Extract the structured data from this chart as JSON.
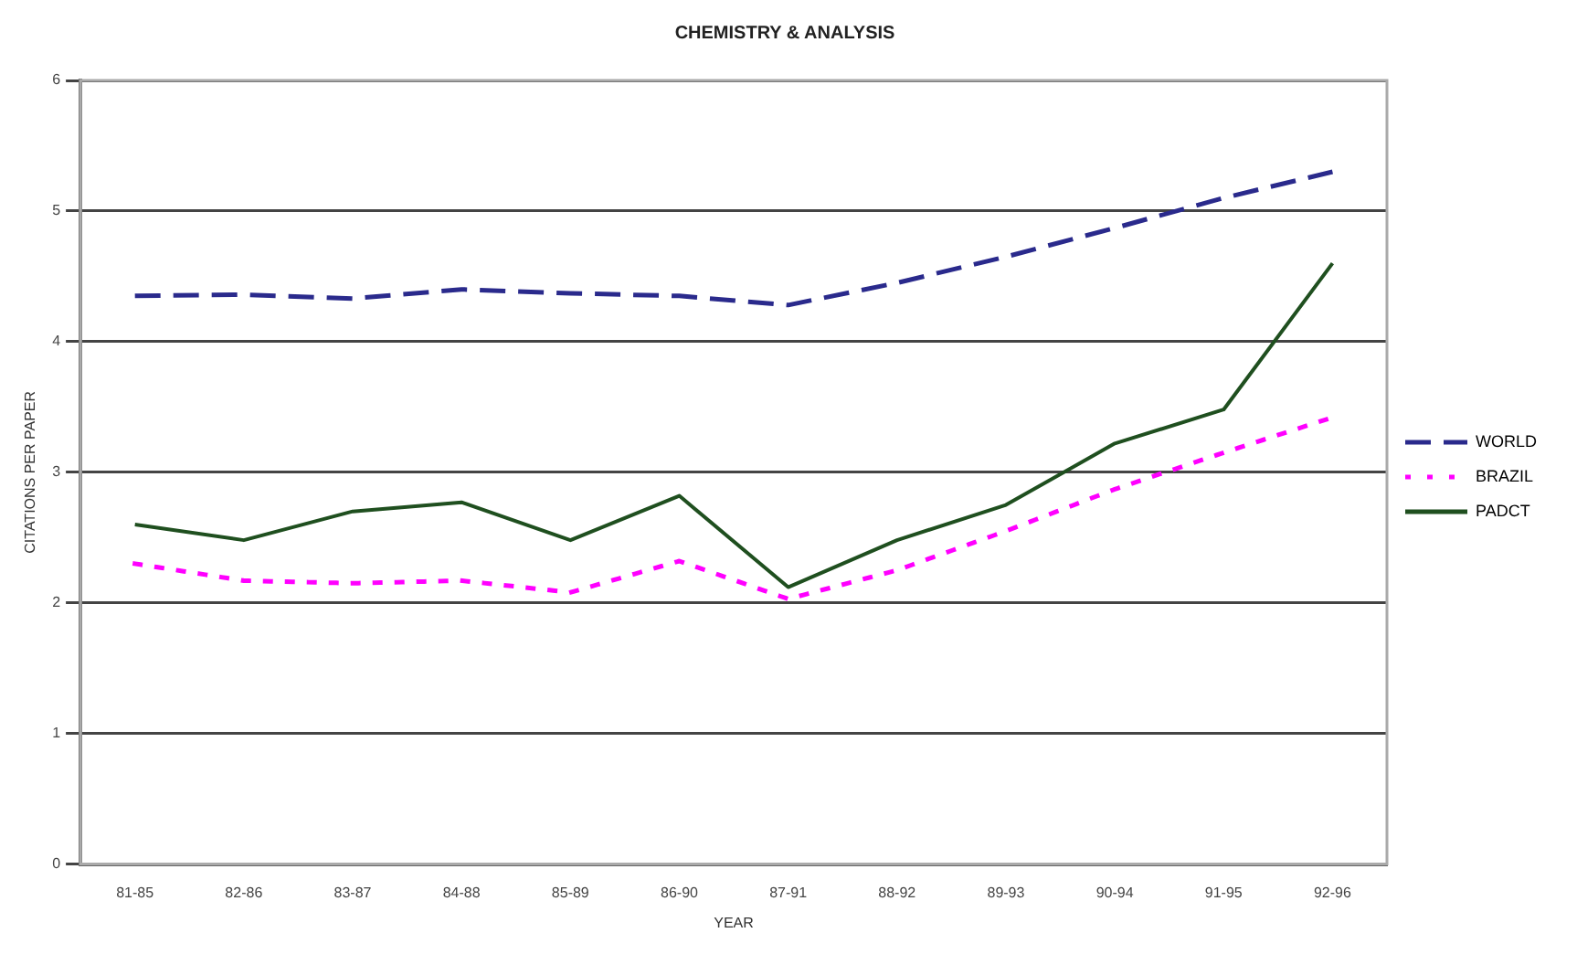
{
  "chart_data": {
    "type": "line",
    "title": "CHEMISTRY & ANALYSIS",
    "xlabel": "YEAR",
    "ylabel": "CITATIONS PER PAPER",
    "categories": [
      "81-85",
      "82-86",
      "83-87",
      "84-88",
      "85-89",
      "86-90",
      "87-91",
      "88-92",
      "89-93",
      "90-94",
      "91-95",
      "92-96"
    ],
    "series": [
      {
        "name": "WORLD",
        "color": "#2a2a8c",
        "line_style": "dashed",
        "values": [
          4.35,
          4.36,
          4.33,
          4.4,
          4.37,
          4.35,
          4.28,
          4.45,
          4.65,
          4.87,
          5.1,
          5.3
        ]
      },
      {
        "name": "BRAZIL",
        "color": "#ff00ff",
        "line_style": "dotted",
        "values": [
          2.3,
          2.17,
          2.15,
          2.17,
          2.08,
          2.32,
          2.03,
          2.25,
          2.55,
          2.87,
          3.15,
          3.42
        ]
      },
      {
        "name": "PADCT",
        "color": "#1f4f1f",
        "line_style": "solid",
        "values": [
          2.6,
          2.48,
          2.7,
          2.77,
          2.48,
          2.82,
          2.12,
          2.48,
          2.75,
          3.22,
          3.48,
          4.6
        ]
      }
    ],
    "ylim": [
      0,
      6
    ],
    "yticks": [
      0,
      1,
      2,
      3,
      4,
      5,
      6
    ],
    "grid": "y",
    "legend": "right",
    "marker": "none"
  }
}
